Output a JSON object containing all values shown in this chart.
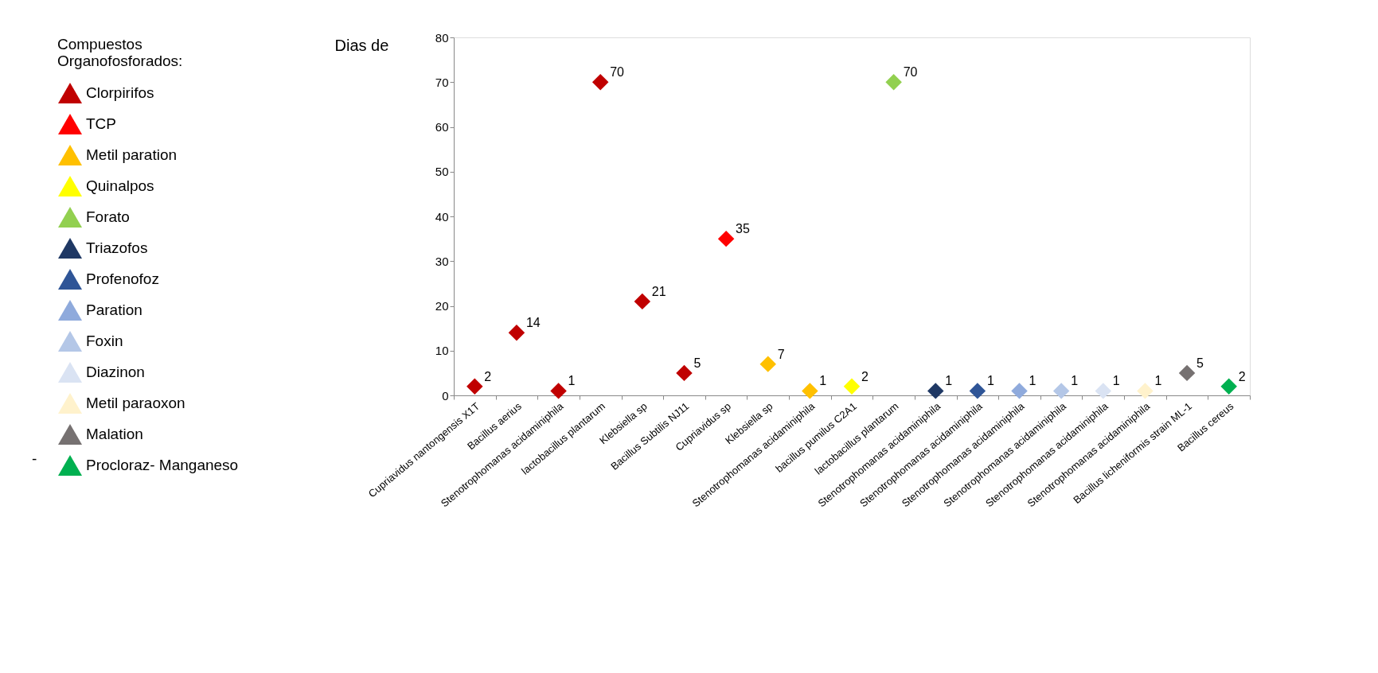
{
  "chart_data": {
    "type": "scatter",
    "ylabel": "Dias de",
    "legend_title": "Compuestos Organofosforados:",
    "legend": "left",
    "marker": "diamond",
    "data_labels": true,
    "grid": false,
    "categories": [
      "Cupriavidus nantongensis X1T",
      "Bacillus aerius",
      "Stenotrophomanas acidaminiphila",
      "lactobacillus plantarum",
      "Klebsiella sp",
      "Bacillus Subtilis NJ11",
      "Cupriavidus sp",
      "Klebsiella sp",
      "Stenotrophomanas acidaminiphila",
      "bacillus pumilus  C2A1",
      "lactobacillus plantarum",
      "Stenotrophomanas acidaminiphila",
      "Stenotrophomanas acidaminiphila",
      "Stenotrophomanas acidaminiphila",
      "Stenotrophomanas acidaminiphila",
      "Stenotrophomanas acidaminiphila",
      "Stenotrophomanas acidaminiphila",
      "Bacillus licheniformis strain ML-1",
      "Bacillus cereus"
    ],
    "ylim": [
      0,
      80
    ],
    "yticks": [
      0,
      10,
      20,
      30,
      40,
      50,
      60,
      70,
      80
    ],
    "series": [
      {
        "name": "Clorpirifos",
        "color": "#c00000",
        "values": [
          2,
          14,
          1,
          70,
          21,
          5,
          null,
          null,
          null,
          null,
          null,
          null,
          null,
          null,
          null,
          null,
          null,
          null,
          null
        ]
      },
      {
        "name": "TCP",
        "color": "#ff0000",
        "values": [
          null,
          null,
          null,
          null,
          null,
          null,
          35,
          null,
          null,
          null,
          null,
          null,
          null,
          null,
          null,
          null,
          null,
          null,
          null
        ]
      },
      {
        "name": "Metil paration",
        "color": "#ffc000",
        "values": [
          null,
          null,
          null,
          null,
          null,
          null,
          null,
          7,
          1,
          null,
          null,
          null,
          null,
          null,
          null,
          null,
          null,
          null,
          null
        ]
      },
      {
        "name": "Quinalpos",
        "color": "#ffff00",
        "values": [
          null,
          null,
          null,
          null,
          null,
          null,
          null,
          null,
          null,
          2,
          null,
          null,
          null,
          null,
          null,
          null,
          null,
          null,
          null
        ]
      },
      {
        "name": "Forato",
        "color": "#92d050",
        "values": [
          null,
          null,
          null,
          null,
          null,
          null,
          null,
          null,
          null,
          null,
          70,
          null,
          null,
          null,
          null,
          null,
          null,
          null,
          null
        ]
      },
      {
        "name": "Triazofos",
        "color": "#1f3864",
        "values": [
          null,
          null,
          null,
          null,
          null,
          null,
          null,
          null,
          null,
          null,
          null,
          1,
          null,
          null,
          null,
          null,
          null,
          null,
          null
        ]
      },
      {
        "name": "Profenofoz",
        "color": "#2f5597",
        "values": [
          null,
          null,
          null,
          null,
          null,
          null,
          null,
          null,
          null,
          null,
          null,
          null,
          1,
          null,
          null,
          null,
          null,
          null,
          null
        ]
      },
      {
        "name": "Paration",
        "color": "#8faadc",
        "values": [
          null,
          null,
          null,
          null,
          null,
          null,
          null,
          null,
          null,
          null,
          null,
          null,
          null,
          1,
          null,
          null,
          null,
          null,
          null
        ]
      },
      {
        "name": "Foxin",
        "color": "#b4c7e7",
        "values": [
          null,
          null,
          null,
          null,
          null,
          null,
          null,
          null,
          null,
          null,
          null,
          null,
          null,
          null,
          1,
          null,
          null,
          null,
          null
        ]
      },
      {
        "name": "Diazinon",
        "color": "#dae3f3",
        "values": [
          null,
          null,
          null,
          null,
          null,
          null,
          null,
          null,
          null,
          null,
          null,
          null,
          null,
          null,
          null,
          1,
          null,
          null,
          null
        ]
      },
      {
        "name": "Metil paraoxon",
        "color": "#fff2cc",
        "values": [
          null,
          null,
          null,
          null,
          null,
          null,
          null,
          null,
          null,
          null,
          null,
          null,
          null,
          null,
          null,
          null,
          1,
          null,
          null
        ]
      },
      {
        "name": "Malation",
        "color": "#767171",
        "values": [
          null,
          null,
          null,
          null,
          null,
          null,
          null,
          null,
          null,
          null,
          null,
          null,
          null,
          null,
          null,
          null,
          null,
          5,
          null
        ]
      },
      {
        "name": "Procloraz- Manganeso",
        "color": "#00b050",
        "values": [
          null,
          null,
          null,
          null,
          null,
          null,
          null,
          null,
          null,
          null,
          null,
          null,
          null,
          null,
          null,
          null,
          null,
          null,
          2
        ]
      }
    ],
    "annotations": [
      "-"
    ]
  }
}
